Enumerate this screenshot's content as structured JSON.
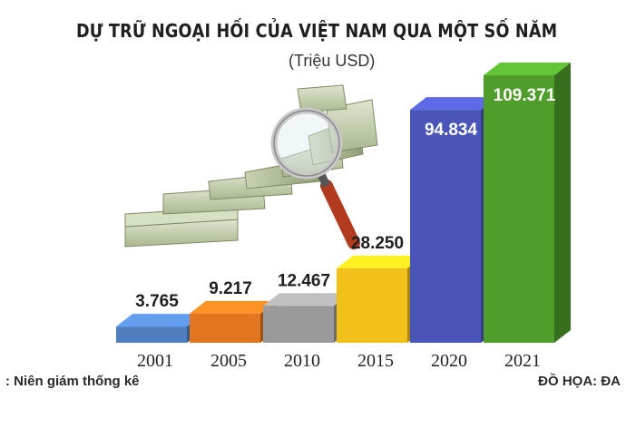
{
  "title": "DỰ TRỮ NGOẠI HỐI CỦA VIỆT NAM QUA MỘT SỐ NĂM",
  "unit": "(Triệu USD)",
  "source": ": Niên giám thống kê",
  "credit": "ĐỒ HỌA: ĐA",
  "colors": {
    "bars": [
      "#4f7ebf",
      "#e2751f",
      "#9a9a9a",
      "#f2c01a",
      "#4a55b8",
      "#4f9e2c"
    ],
    "labels": [
      "#1f1f1f",
      "#1f1f1f",
      "#1f1f1f",
      "#1f1f1f",
      "#ffffff",
      "#ffffff"
    ]
  },
  "chart_data": {
    "type": "bar",
    "title": "DỰ TRỮ NGOẠI HỐI CỦA VIỆT NAM QUA MỘT SỐ NĂM",
    "ylabel": "(Triệu USD)",
    "categories": [
      "2001",
      "2005",
      "2010",
      "2015",
      "2020",
      "2021"
    ],
    "values": [
      3765,
      9217,
      12467,
      28250,
      94834,
      109371
    ],
    "value_labels": [
      "3.765",
      "9.217",
      "12.467",
      "28.250",
      "94.834",
      "109.371"
    ],
    "grid": false,
    "legend": "none"
  }
}
